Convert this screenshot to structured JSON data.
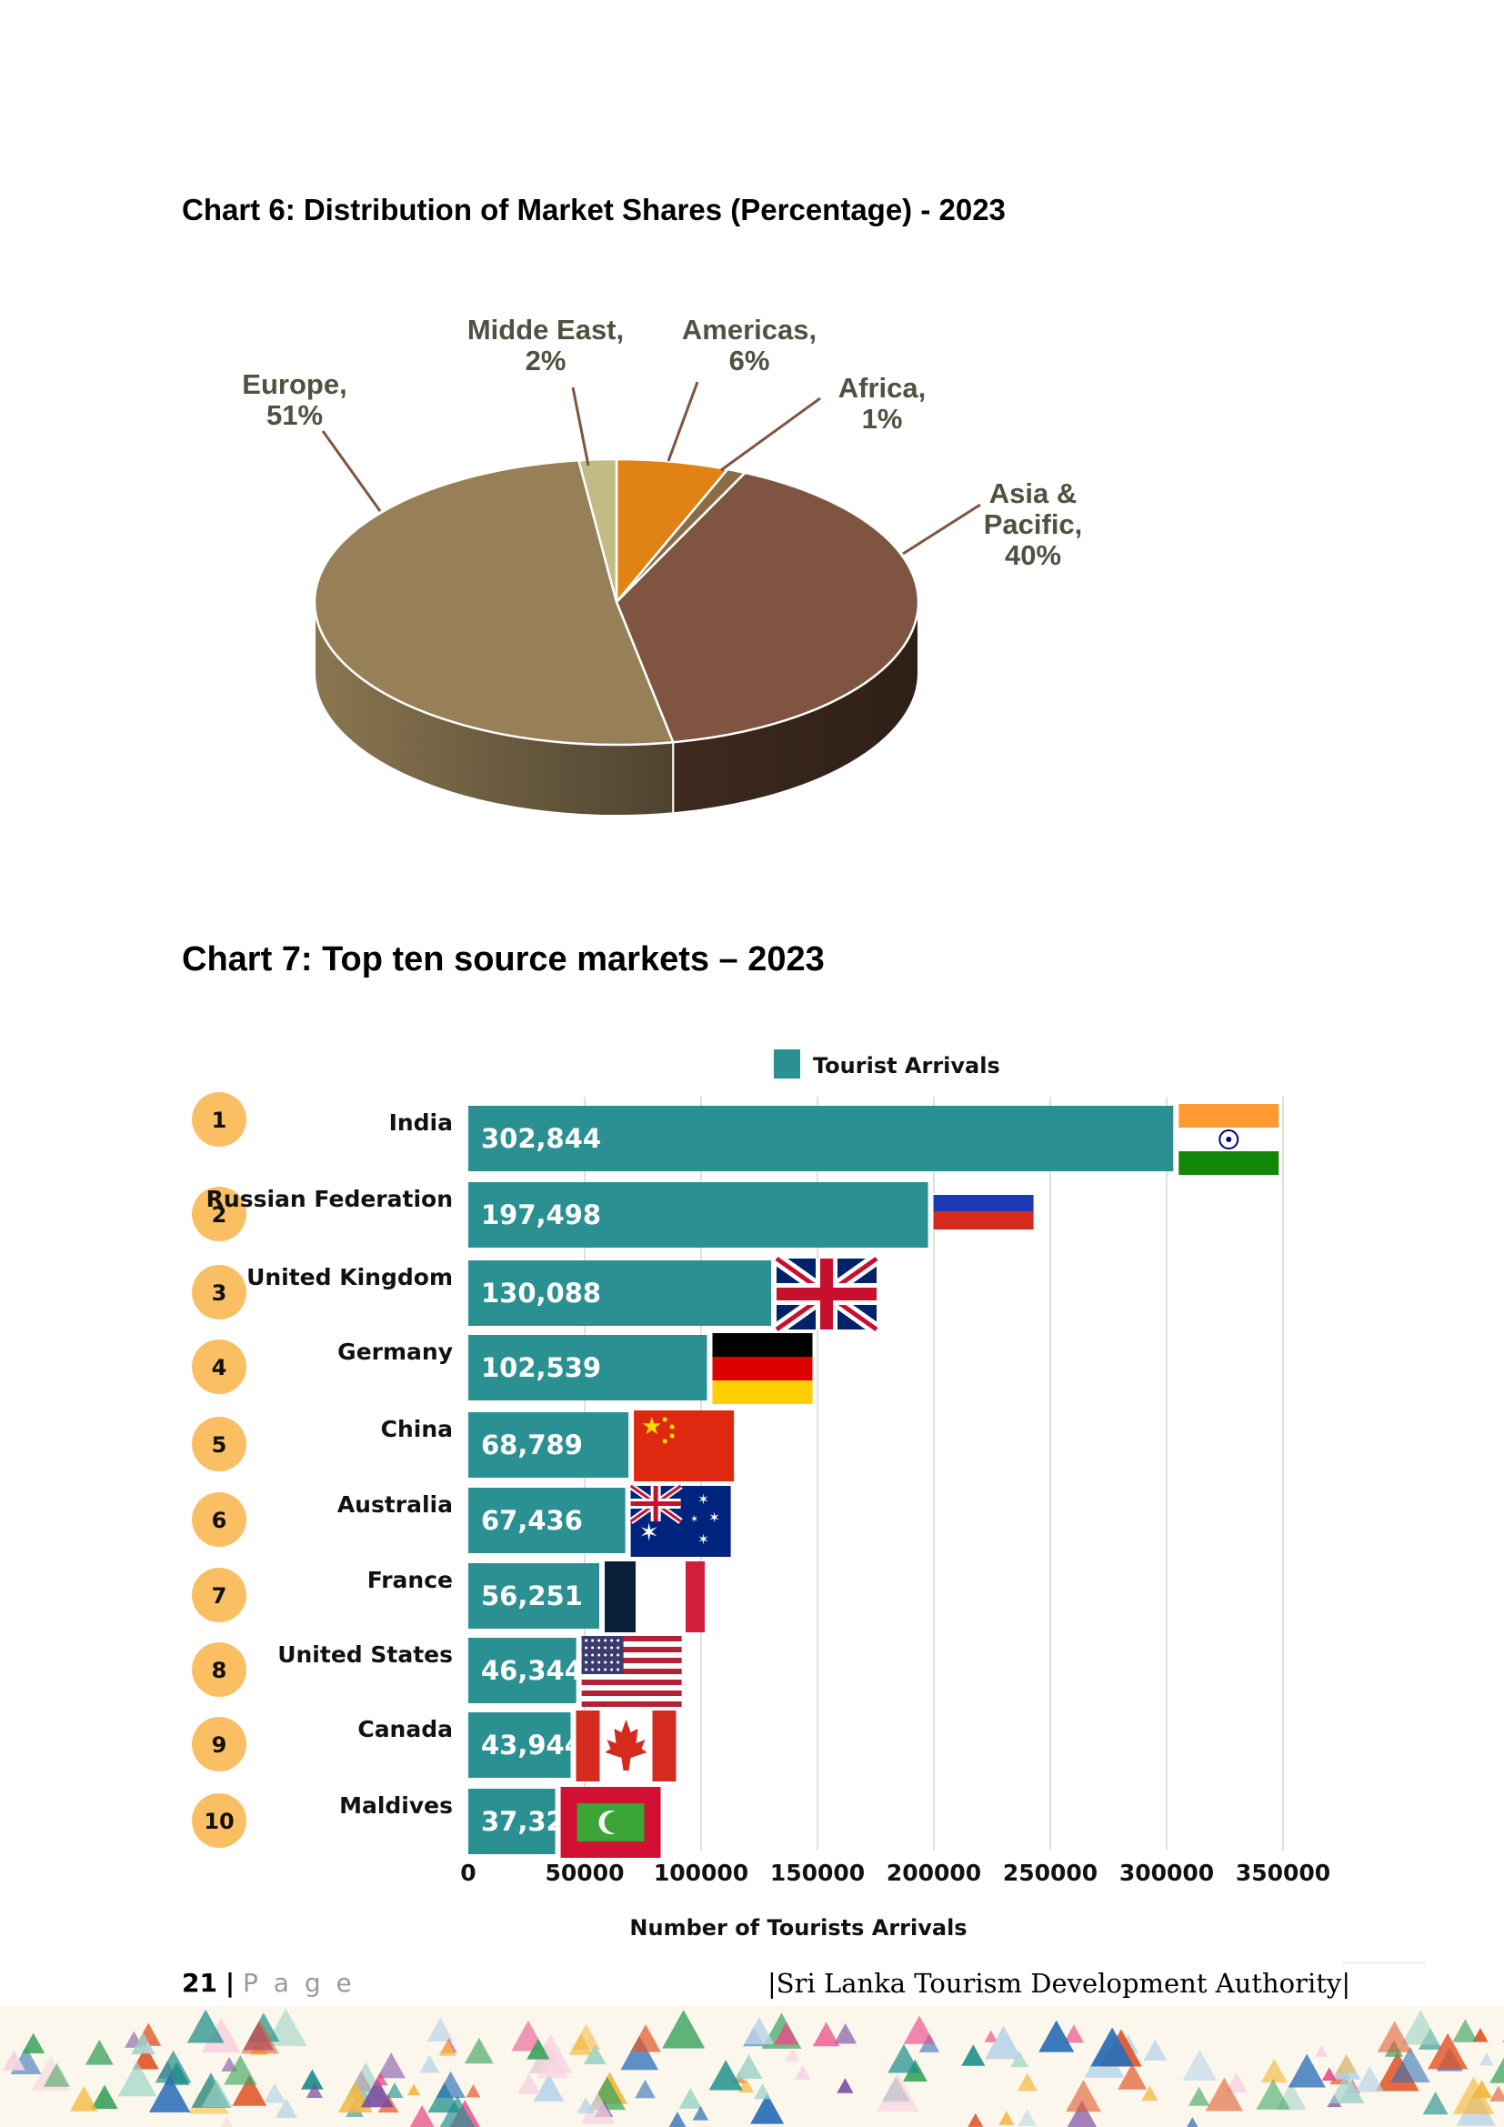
{
  "chart6": {
    "title": "Chart 6: Distribution of Market Shares (Percentage) - 2023",
    "chart_data": {
      "type": "pie",
      "title": "Chart 6: Distribution of Market Shares (Percentage) - 2023",
      "slices": [
        {
          "label": "Americas",
          "value": 6,
          "color": "#e08214"
        },
        {
          "label": "Africa",
          "value": 1,
          "color": "#8a6d48"
        },
        {
          "label": "Asia & Pacific",
          "value": 40,
          "color": "#7f5440"
        },
        {
          "label": "Europe",
          "value": 51,
          "color": "#977f58"
        },
        {
          "label": "Midde East",
          "value": 2,
          "color": "#c2bb83"
        }
      ],
      "labels": {
        "europe": [
          "Europe,",
          "51%"
        ],
        "middle_east": [
          "Midde East,",
          "2%"
        ],
        "americas": [
          "Americas,",
          "6%"
        ],
        "africa": [
          "Africa,",
          "1%"
        ],
        "asia": [
          "Asia &",
          "Pacific,",
          "40%"
        ]
      }
    }
  },
  "chart7": {
    "title": "Chart 7: Top ten source markets – 2023",
    "chart_data": {
      "type": "bar",
      "orientation": "horizontal",
      "legend": "Tourist Arrivals",
      "legend_position": "top",
      "xlabel": "Number of Tourists Arrivals",
      "xlim": [
        0,
        350000
      ],
      "xticks": [
        "0",
        "50000",
        "100000",
        "150000",
        "200000",
        "250000",
        "300000",
        "350000"
      ],
      "bar_color": "#2a9092",
      "grid": true,
      "categories": [
        "India",
        "Russian Federation",
        "United Kingdom",
        "Germany",
        "China",
        "Australia",
        "France",
        "United States",
        "Canada",
        "Maldives"
      ],
      "ranks": [
        "1",
        "2",
        "3",
        "4",
        "5",
        "6",
        "7",
        "8",
        "9",
        "10"
      ],
      "values": [
        302844,
        197498,
        130088,
        102539,
        68789,
        67436,
        56251,
        46344,
        43944,
        37328
      ],
      "value_labels": [
        "302,844",
        "197,498",
        "130,088",
        "102,539",
        "68,789",
        "67,436",
        "56,251",
        "46,344",
        "43,944",
        "37,328"
      ],
      "flags": [
        "india-flag-icon",
        "russia-flag-icon",
        "uk-flag-icon",
        "germany-flag-icon",
        "china-flag-icon",
        "australia-flag-icon",
        "france-flag-icon",
        "usa-flag-icon",
        "canada-flag-icon",
        "maldives-flag-icon"
      ]
    }
  },
  "footer": {
    "page_number": "21",
    "separator": "|",
    "page_word": "P a g e",
    "authority": "|Sri Lanka Tourism Development Authority|"
  }
}
